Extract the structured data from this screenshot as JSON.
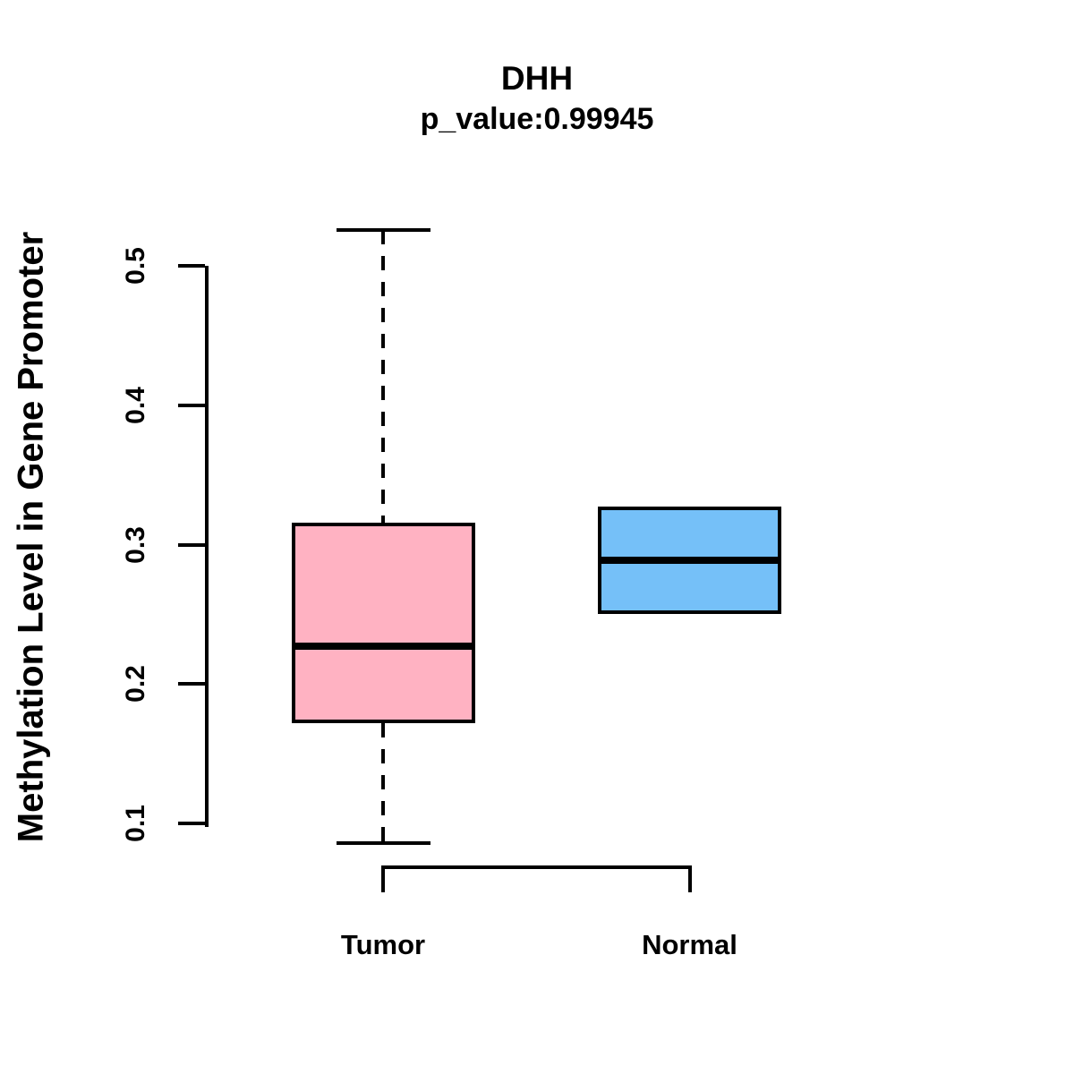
{
  "chart": {
    "title": "DHH",
    "subtitle": "p_value:0.99945",
    "ylabel": "Methylation Level in Gene Promoter"
  },
  "chart_data": {
    "type": "boxplot",
    "title": "DHH",
    "subtitle": "p_value:0.99945",
    "gene": "DHH",
    "p_value": 0.99945,
    "ylabel": "Methylation Level in Gene Promoter",
    "xlabel": "",
    "categories": [
      "Tumor",
      "Normal"
    ],
    "ylim": [
      0.1,
      0.5
    ],
    "yticks": [
      0.1,
      0.2,
      0.3,
      0.4,
      0.5
    ],
    "grid": false,
    "legend": "none",
    "series": [
      {
        "name": "Tumor",
        "fill_color": "#FFB2C2",
        "stroke_color": "#000000",
        "whisker_low": 0.086,
        "q1": 0.172,
        "median": 0.227,
        "q3": 0.316,
        "whisker_high": 0.526
      },
      {
        "name": "Normal",
        "fill_color": "#75C0F8",
        "stroke_color": "#000000",
        "whisker_low": 0.25,
        "q1": 0.25,
        "median": 0.289,
        "q3": 0.327,
        "whisker_high": 0.327
      }
    ]
  }
}
